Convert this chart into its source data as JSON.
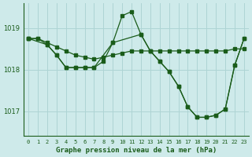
{
  "title": "Graphe pression niveau de la mer (hPa)",
  "background_color": "#ceeaea",
  "grid_color": "#aed4d4",
  "line_color": "#1a5c1a",
  "xlim": [
    -0.5,
    23.5
  ],
  "ylim": [
    1016.4,
    1019.6
  ],
  "yticks": [
    1017,
    1018,
    1019
  ],
  "xtick_labels": [
    "0",
    "1",
    "2",
    "3",
    "4",
    "5",
    "6",
    "7",
    "8",
    "9",
    "10",
    "11",
    "12",
    "13",
    "14",
    "15",
    "16",
    "17",
    "18",
    "19",
    "20",
    "21",
    "22",
    "23"
  ],
  "series1_x": [
    0,
    1,
    2,
    3,
    4,
    5,
    6,
    7,
    8,
    9,
    10,
    11,
    12,
    13,
    14,
    15,
    16,
    17,
    18,
    19,
    20,
    21,
    22,
    23
  ],
  "series1_y": [
    1018.75,
    1018.75,
    1018.65,
    1018.55,
    1018.45,
    1018.35,
    1018.3,
    1018.25,
    1018.3,
    1018.35,
    1018.4,
    1018.45,
    1018.45,
    1018.45,
    1018.45,
    1018.45,
    1018.45,
    1018.45,
    1018.45,
    1018.45,
    1018.45,
    1018.45,
    1018.5,
    1018.5
  ],
  "series2_x": [
    0,
    1,
    2,
    3,
    4,
    5,
    6,
    7,
    8,
    9,
    10,
    11,
    12,
    13,
    14,
    15,
    16,
    17,
    18,
    19,
    20,
    21,
    22,
    23
  ],
  "series2_y": [
    1018.75,
    1018.75,
    1018.6,
    1018.35,
    1018.05,
    1018.05,
    1018.05,
    1018.05,
    1018.2,
    1018.65,
    1019.3,
    1019.4,
    1018.85,
    1018.45,
    1018.2,
    1017.95,
    1017.6,
    1017.1,
    1016.85,
    1016.85,
    1016.9,
    1017.05,
    1018.1,
    1018.75
  ],
  "series3_x": [
    0,
    2,
    3,
    4,
    5,
    6,
    7,
    9,
    12,
    13,
    14,
    15,
    16,
    17,
    18,
    19,
    20,
    21,
    22,
    23
  ],
  "series3_y": [
    1018.75,
    1018.6,
    1018.35,
    1018.05,
    1018.05,
    1018.05,
    1018.05,
    1018.65,
    1018.85,
    1018.45,
    1018.2,
    1017.95,
    1017.6,
    1017.1,
    1016.85,
    1016.85,
    1016.9,
    1017.05,
    1018.1,
    1018.75
  ]
}
